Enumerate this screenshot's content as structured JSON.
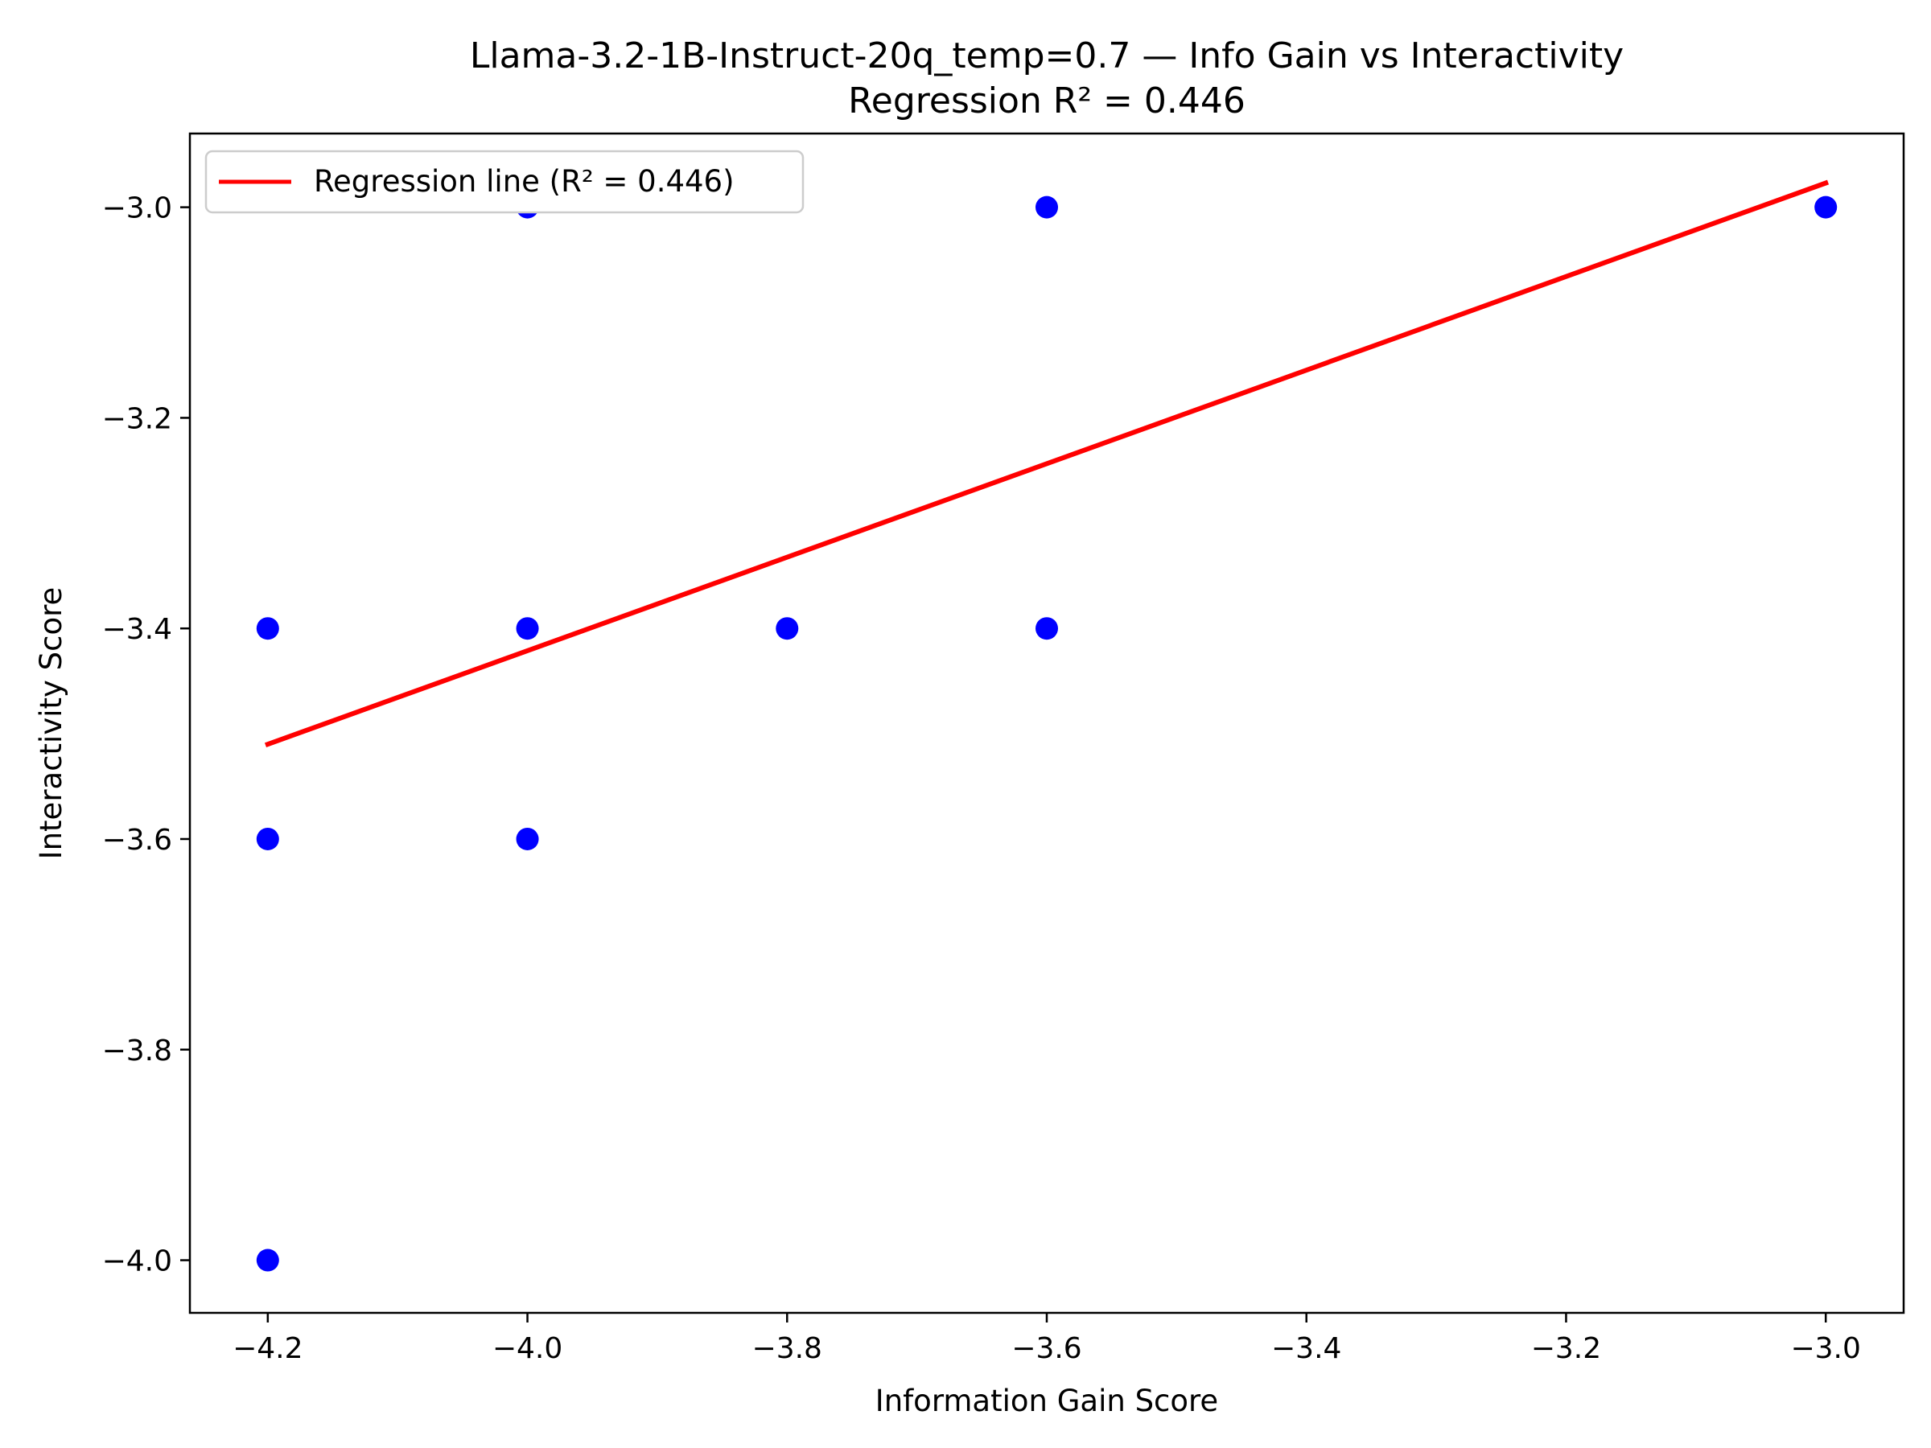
{
  "chart_data": {
    "type": "scatter",
    "title": "Llama-3.2-1B-Instruct-20q_temp=0.7 — Info Gain vs Interactivity",
    "subtitle": "Regression R² = 0.446",
    "xlabel": "Information Gain Score",
    "ylabel": "Interactivity Score",
    "xlim": [
      -4.26,
      -2.94
    ],
    "ylim": [
      -4.05,
      -2.93
    ],
    "x_ticks": [
      -4.2,
      -4.0,
      -3.8,
      -3.6,
      -3.4,
      -3.2,
      -3.0
    ],
    "x_tick_labels": [
      "−4.2",
      "−4.0",
      "−3.8",
      "−3.6",
      "−3.4",
      "−3.2",
      "−3.0"
    ],
    "y_ticks": [
      -3.0,
      -3.2,
      -3.4,
      -3.6,
      -3.8,
      -4.0
    ],
    "y_tick_labels": [
      "−3.0",
      "−3.2",
      "−3.4",
      "−3.6",
      "−3.8",
      "−4.0"
    ],
    "grid": false,
    "legend_position": "top-left",
    "points": [
      {
        "x": -4.2,
        "y": -3.4
      },
      {
        "x": -4.2,
        "y": -3.6
      },
      {
        "x": -4.2,
        "y": -4.0
      },
      {
        "x": -4.0,
        "y": -3.0
      },
      {
        "x": -4.0,
        "y": -3.4
      },
      {
        "x": -4.0,
        "y": -3.6
      },
      {
        "x": -3.8,
        "y": -3.4
      },
      {
        "x": -3.6,
        "y": -3.0
      },
      {
        "x": -3.6,
        "y": -3.4
      },
      {
        "x": -3.0,
        "y": -3.0
      }
    ],
    "regression": {
      "label": "Regression line (R² = 0.446)",
      "x": [
        -4.2,
        -3.0
      ],
      "y": [
        -3.51,
        -2.977
      ]
    },
    "colors": {
      "points": "#0000ff",
      "regression": "#ff0000"
    }
  }
}
